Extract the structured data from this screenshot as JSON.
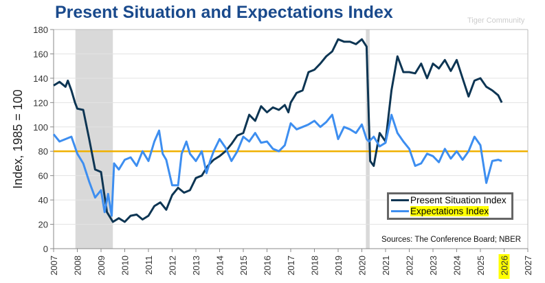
{
  "title": "Present Situation and Expectations Index",
  "chart_data": {
    "type": "line",
    "title": "Present Situation and Expectations Index",
    "ylabel": "Index, 1985 = 100",
    "xlabel": "",
    "ylim": [
      0,
      180
    ],
    "xlim": [
      2007,
      2027
    ],
    "yticks": [
      "0",
      "20",
      "40",
      "60",
      "80",
      "100",
      "120",
      "140",
      "160",
      "180"
    ],
    "xticks": [
      "2007",
      "2008",
      "2009",
      "2010",
      "2011",
      "2012",
      "2013",
      "2014",
      "2015",
      "2016",
      "2017",
      "2018",
      "2019",
      "2020",
      "2021",
      "2022",
      "2023",
      "2024",
      "2025",
      "2026",
      "2027"
    ],
    "highlighted_xtick": "2026",
    "grid": "horizontal",
    "legend_position": "bottom-right",
    "reference_line": {
      "y": 80,
      "color": "#f0b000"
    },
    "recessions": [
      [
        2007.92,
        2009.5
      ],
      [
        2020.17,
        2020.33
      ]
    ],
    "series": [
      {
        "name": "Present Situation Index",
        "color": "#0d3553",
        "x": [
          2007.0,
          2007.25,
          2007.5,
          2007.6,
          2007.75,
          2007.9,
          2008.0,
          2008.25,
          2008.5,
          2008.75,
          2009.0,
          2009.25,
          2009.5,
          2009.75,
          2010.0,
          2010.25,
          2010.5,
          2010.75,
          2011.0,
          2011.25,
          2011.5,
          2011.75,
          2012.0,
          2012.25,
          2012.5,
          2012.75,
          2013.0,
          2013.25,
          2013.5,
          2013.75,
          2014.0,
          2014.25,
          2014.5,
          2014.75,
          2015.0,
          2015.25,
          2015.5,
          2015.75,
          2016.0,
          2016.25,
          2016.5,
          2016.75,
          2016.9,
          2017.0,
          2017.25,
          2017.5,
          2017.75,
          2018.0,
          2018.25,
          2018.5,
          2018.75,
          2019.0,
          2019.25,
          2019.5,
          2019.75,
          2020.0,
          2020.2,
          2020.35,
          2020.5,
          2020.75,
          2021.0,
          2021.25,
          2021.5,
          2021.75,
          2022.0,
          2022.25,
          2022.5,
          2022.75,
          2023.0,
          2023.25,
          2023.5,
          2023.75,
          2024.0,
          2024.25,
          2024.5,
          2024.75,
          2025.0,
          2025.25,
          2025.5,
          2025.75,
          2025.9
        ],
        "y": [
          134,
          137,
          133,
          138,
          130,
          120,
          115,
          114,
          90,
          65,
          63,
          30,
          22,
          25,
          22,
          27,
          28,
          24,
          27,
          35,
          38,
          32,
          44,
          50,
          46,
          48,
          58,
          60,
          68,
          73,
          76,
          80,
          86,
          93,
          95,
          110,
          105,
          117,
          112,
          116,
          114,
          118,
          112,
          120,
          128,
          130,
          145,
          147,
          152,
          158,
          162,
          172,
          170,
          170,
          168,
          172,
          166,
          72,
          68,
          95,
          88,
          130,
          158,
          145,
          145,
          144,
          152,
          140,
          152,
          148,
          155,
          146,
          155,
          140,
          125,
          138,
          140,
          133,
          130,
          126,
          120
        ]
      },
      {
        "name": "Expectations Index",
        "color": "#3d8ef0",
        "x": [
          2007.0,
          2007.25,
          2007.5,
          2007.75,
          2008.0,
          2008.25,
          2008.5,
          2008.75,
          2009.0,
          2009.15,
          2009.3,
          2009.45,
          2009.55,
          2009.75,
          2010.0,
          2010.25,
          2010.5,
          2010.75,
          2011.0,
          2011.25,
          2011.45,
          2011.6,
          2011.75,
          2012.0,
          2012.25,
          2012.4,
          2012.6,
          2012.75,
          2013.0,
          2013.25,
          2013.45,
          2013.6,
          2013.75,
          2014.0,
          2014.25,
          2014.5,
          2014.75,
          2015.0,
          2015.25,
          2015.5,
          2015.75,
          2016.0,
          2016.25,
          2016.5,
          2016.75,
          2017.0,
          2017.25,
          2017.5,
          2017.75,
          2018.0,
          2018.25,
          2018.5,
          2018.75,
          2019.0,
          2019.25,
          2019.5,
          2019.75,
          2020.0,
          2020.2,
          2020.3,
          2020.5,
          2020.75,
          2021.0,
          2021.25,
          2021.5,
          2021.75,
          2022.0,
          2022.25,
          2022.5,
          2022.75,
          2023.0,
          2023.25,
          2023.5,
          2023.75,
          2024.0,
          2024.25,
          2024.5,
          2024.75,
          2025.0,
          2025.25,
          2025.5,
          2025.75,
          2025.9
        ],
        "y": [
          94,
          88,
          90,
          92,
          78,
          70,
          55,
          42,
          48,
          30,
          45,
          27,
          70,
          65,
          73,
          75,
          68,
          80,
          72,
          88,
          97,
          78,
          73,
          52,
          52,
          78,
          88,
          78,
          72,
          80,
          62,
          72,
          80,
          90,
          83,
          72,
          80,
          92,
          88,
          95,
          87,
          88,
          82,
          80,
          85,
          103,
          98,
          100,
          102,
          105,
          100,
          104,
          110,
          90,
          100,
          98,
          95,
          102,
          90,
          88,
          92,
          84,
          87,
          110,
          95,
          88,
          82,
          68,
          70,
          78,
          76,
          71,
          82,
          74,
          80,
          73,
          80,
          92,
          85,
          54,
          72,
          73,
          72
        ]
      }
    ]
  },
  "legend": {
    "items": [
      "Present Situation Index",
      "Expectations Index"
    ]
  },
  "source": "Sources:  The Conference Board;  NBER",
  "watermark": "Tiger Community"
}
